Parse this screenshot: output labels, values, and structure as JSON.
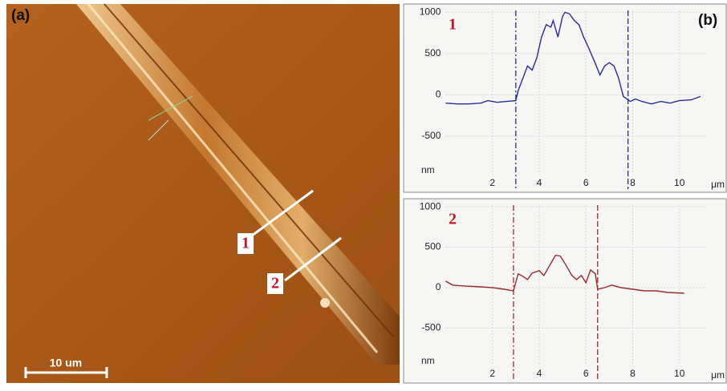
{
  "figure": {
    "panel_a_label": "(a)",
    "panel_b_label": "(b)",
    "scale_bar": "10 um"
  },
  "chart_data": [
    {
      "type": "line",
      "label": "1",
      "x_unit": "μm",
      "y_unit": "nm",
      "color": "#2a2a9c",
      "grid": true,
      "xlim": [
        -1.8,
        12
      ],
      "ylim": [
        -1180,
        1100
      ],
      "xticks": [
        2,
        4,
        6,
        8,
        10
      ],
      "yticks": [
        1000,
        500,
        0,
        -500
      ],
      "markers": [
        3.0,
        7.8
      ],
      "x": [
        0.0,
        0.5,
        1.0,
        1.5,
        1.8,
        2.2,
        2.6,
        3.0,
        3.1,
        3.3,
        3.5,
        3.7,
        3.9,
        4.1,
        4.3,
        4.5,
        4.6,
        4.8,
        5.0,
        5.1,
        5.3,
        5.5,
        5.7,
        5.9,
        6.1,
        6.4,
        6.6,
        6.8,
        7.0,
        7.2,
        7.4,
        7.6,
        7.9,
        8.1,
        8.4,
        8.8,
        9.2,
        9.6,
        10.0,
        10.5,
        10.9
      ],
      "values": [
        -100,
        -110,
        -110,
        -100,
        -70,
        -90,
        -80,
        -70,
        50,
        200,
        350,
        300,
        450,
        700,
        850,
        820,
        900,
        700,
        950,
        1000,
        980,
        900,
        850,
        700,
        580,
        380,
        240,
        350,
        390,
        350,
        200,
        -20,
        -80,
        -50,
        -80,
        -110,
        -80,
        -100,
        -70,
        -60,
        -20
      ]
    },
    {
      "type": "line",
      "label": "2",
      "x_unit": "μm",
      "y_unit": "nm",
      "color": "#9b2a2a",
      "grid": true,
      "xlim": [
        -1.8,
        12
      ],
      "ylim": [
        -1180,
        1100
      ],
      "xticks": [
        2,
        4,
        6,
        8,
        10
      ],
      "yticks": [
        1000,
        500,
        0,
        -500
      ],
      "markers": [
        2.9,
        6.5
      ],
      "x": [
        0.0,
        0.3,
        0.8,
        1.5,
        2.0,
        2.5,
        2.9,
        3.1,
        3.3,
        3.5,
        3.7,
        4.0,
        4.2,
        4.5,
        4.7,
        4.9,
        5.1,
        5.4,
        5.6,
        5.8,
        6.0,
        6.2,
        6.4,
        6.5,
        6.8,
        7.1,
        7.5,
        8.0,
        8.5,
        9.0,
        9.5,
        10.2
      ],
      "values": [
        80,
        30,
        20,
        10,
        0,
        -20,
        -40,
        170,
        140,
        100,
        180,
        210,
        150,
        300,
        400,
        390,
        300,
        150,
        100,
        150,
        60,
        220,
        170,
        -20,
        0,
        30,
        0,
        -20,
        -40,
        -40,
        -60,
        -70
      ]
    }
  ]
}
